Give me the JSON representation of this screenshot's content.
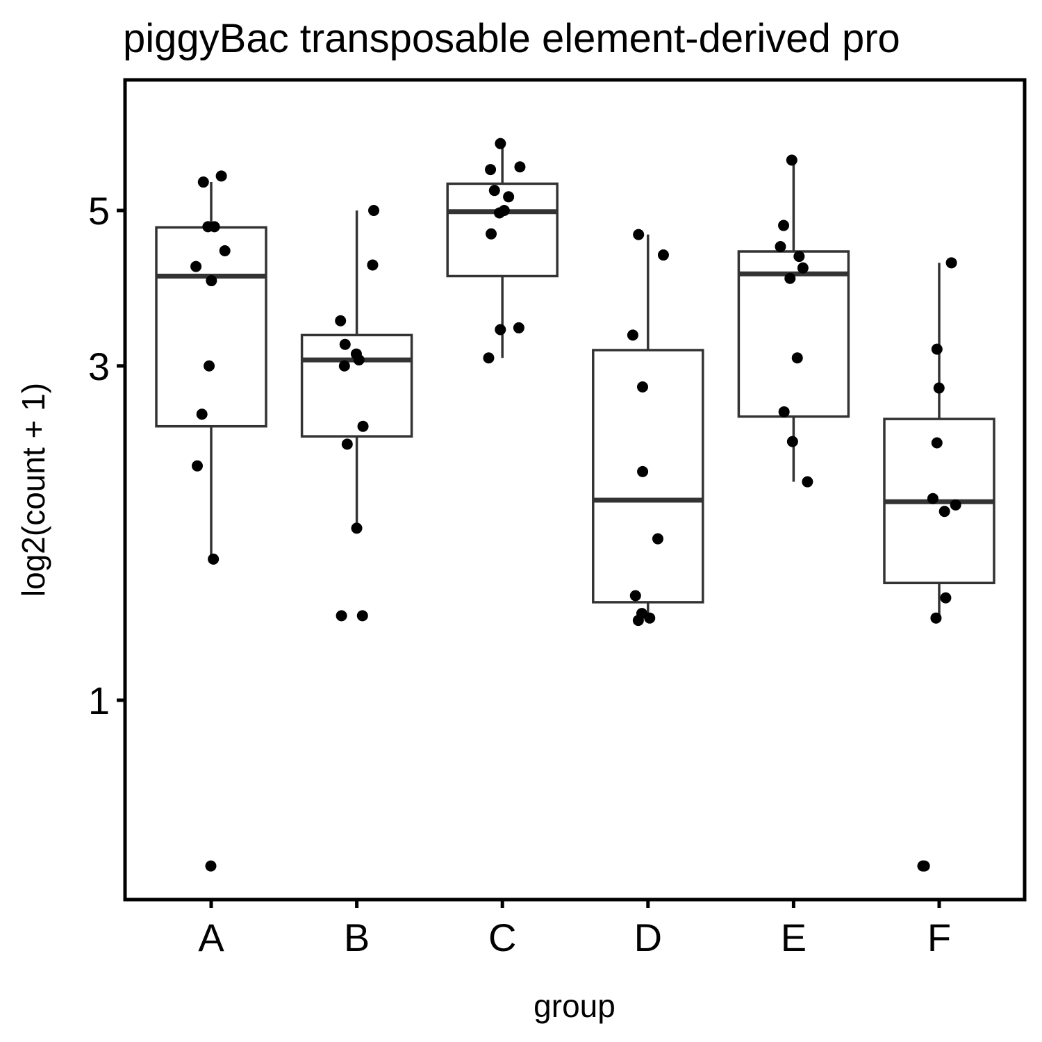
{
  "chart_data": {
    "type": "box",
    "title": "piggyBac transposable element-derived pro",
    "xlabel": "group",
    "ylabel": "log2(count + 1)",
    "scale": "log2",
    "yticks": [
      1,
      3,
      5
    ],
    "ytick_labels": [
      "1",
      "3",
      "5"
    ],
    "ylim": [
      0.28,
      7.0
    ],
    "categories": [
      "A",
      "B",
      "C",
      "D",
      "E",
      "F"
    ],
    "grid": false,
    "legend": "none",
    "boxes": [
      {
        "category": "A",
        "lower_whisker": 1.59,
        "q1": 2.46,
        "median": 4.03,
        "q3": 4.73,
        "upper_whisker": 5.49,
        "points": [
          0.58,
          1.59,
          2.16,
          2.56,
          3.0,
          3.97,
          4.16,
          4.38,
          4.74,
          4.74,
          5.49,
          5.6
        ]
      },
      {
        "category": "B",
        "lower_whisker": 1.76,
        "q1": 2.38,
        "median": 3.06,
        "q3": 3.32,
        "upper_whisker": 5.0,
        "points": [
          1.32,
          1.32,
          1.76,
          2.32,
          2.46,
          3.0,
          3.06,
          3.12,
          3.22,
          3.48,
          4.18,
          5.0
        ]
      },
      {
        "category": "C",
        "lower_whisker": 3.08,
        "q1": 4.03,
        "median": 4.98,
        "q3": 5.46,
        "upper_whisker": 6.23,
        "points": [
          3.08,
          3.38,
          3.4,
          4.63,
          4.96,
          5.0,
          5.23,
          5.34,
          5.72,
          5.77,
          6.23
        ]
      },
      {
        "category": "D",
        "lower_whisker": 1.3,
        "q1": 1.38,
        "median": 1.93,
        "q3": 3.16,
        "upper_whisker": 4.62,
        "points": [
          1.3,
          1.31,
          1.33,
          1.41,
          1.7,
          2.12,
          2.8,
          3.32,
          4.32,
          4.62
        ]
      },
      {
        "category": "E",
        "lower_whisker": 2.05,
        "q1": 2.54,
        "median": 4.06,
        "q3": 4.37,
        "upper_whisker": 5.9,
        "points": [
          2.05,
          2.34,
          2.58,
          3.08,
          4.0,
          4.14,
          4.3,
          4.44,
          4.76,
          5.9
        ]
      },
      {
        "category": "F",
        "lower_whisker": 1.32,
        "q1": 1.47,
        "median": 1.92,
        "q3": 2.52,
        "upper_whisker": 4.21,
        "points": [
          0.58,
          0.58,
          1.31,
          1.4,
          1.86,
          1.9,
          1.94,
          2.33,
          2.79,
          3.17,
          4.21
        ]
      }
    ]
  }
}
